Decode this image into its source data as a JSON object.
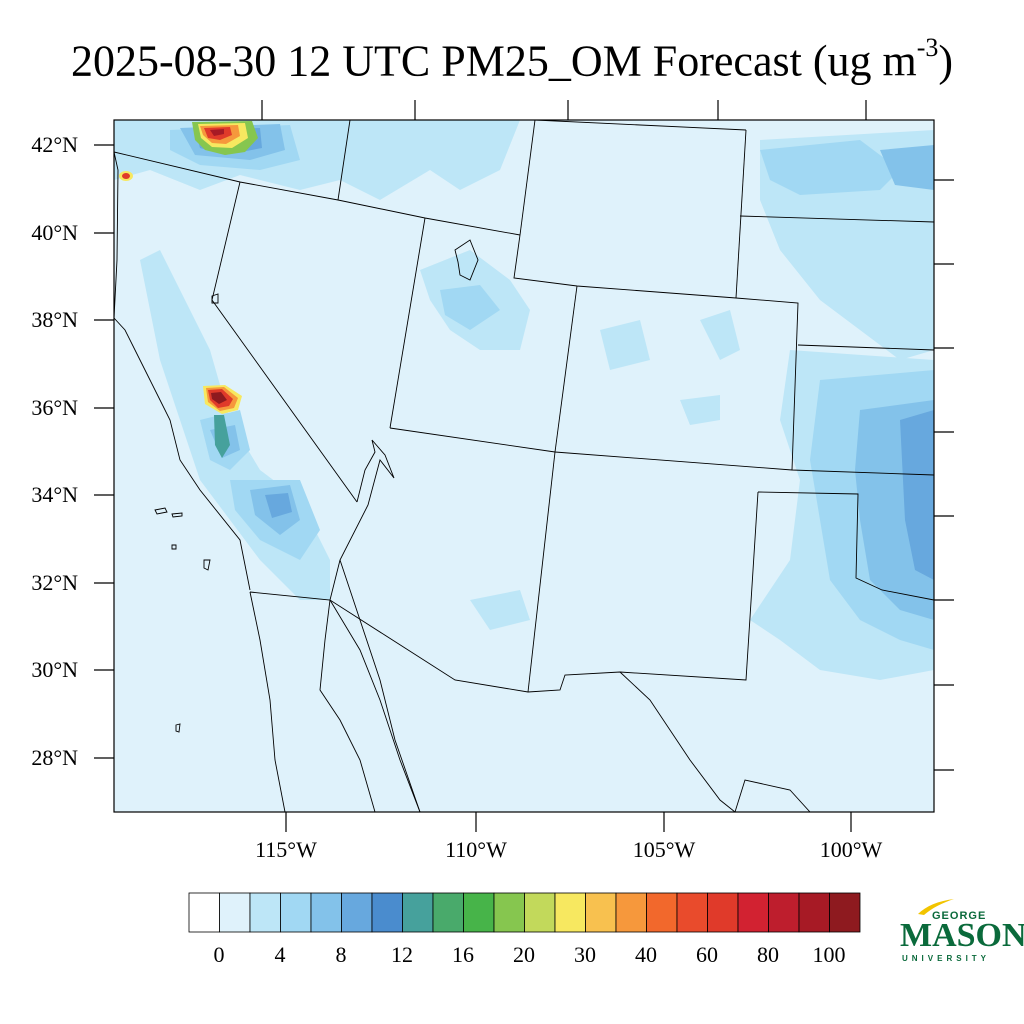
{
  "title": {
    "main": "2025-08-30 12 UTC PM25_OM Forecast (ug m",
    "superscript": "-3",
    "close": ")"
  },
  "map": {
    "latitude_labels": [
      "42°N",
      "40°N",
      "38°N",
      "36°N",
      "34°N",
      "32°N",
      "30°N",
      "28°N"
    ],
    "longitude_labels": [
      "115°W",
      "110°W",
      "105°W",
      "100°W"
    ],
    "background_color": "#dff2fb",
    "hotspots": [
      {
        "name": "northern-california-fire",
        "peak_value": "60-100"
      },
      {
        "name": "southern-sierra-fire",
        "peak_value": "80-100"
      },
      {
        "name": "northwest-california-fire",
        "peak_value": "60"
      }
    ]
  },
  "colorbar": {
    "colors": [
      "#ffffff",
      "#dff2fb",
      "#bde6f7",
      "#a1d8f3",
      "#83c2ea",
      "#67a8de",
      "#4a8cce",
      "#46a19c",
      "#49aa6b",
      "#47b449",
      "#86c64f",
      "#c2d95b",
      "#f7e860",
      "#f8c14f",
      "#f6983c",
      "#f2682c",
      "#e94b2c",
      "#e03a2a",
      "#d22231",
      "#be1e2d",
      "#a71a25",
      "#8e1a1f"
    ],
    "labels": [
      "0",
      "4",
      "8",
      "12",
      "16",
      "20",
      "30",
      "40",
      "60",
      "80",
      "100"
    ]
  },
  "logo": {
    "line1": "GEORGE",
    "line2": "MASON",
    "line3": "UNIVERSITY",
    "color": "#0a6a3b",
    "accent_color": "#f2c400"
  }
}
